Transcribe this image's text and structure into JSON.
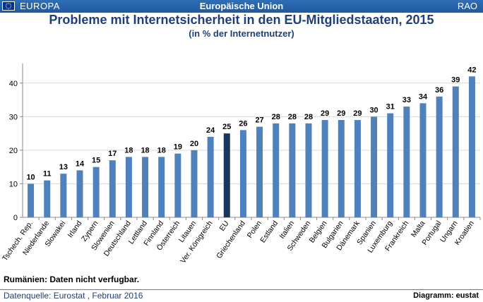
{
  "header": {
    "left_label": "EUROPA",
    "center_label": "Europäische Union",
    "right_label": "RAO"
  },
  "colors": {
    "bar": "#4f81bd",
    "highlight_bar": "#17375e",
    "header_bg": "#2a68b0"
  },
  "icons": {
    "flag": "eu-flag-icon"
  },
  "chart_data": {
    "type": "bar",
    "title": "Probleme mit Internetsicherheit in den EU-Mitgliedstaaten, 2015",
    "subtitle": "(in % der Internetnutzer)",
    "categories": [
      "Tschech. Rep.",
      "Niederlande",
      "Slowakei",
      "Irland",
      "Zypern",
      "Slowenien",
      "Deutschland",
      "Lettland",
      "Finnland",
      "Österreich",
      "Litauen",
      "Ver. Königreich",
      "EU",
      "Griechenland",
      "Polen",
      "Estland",
      "Italien",
      "Schweden",
      "Belgien",
      "Bulgarien",
      "Dänemark",
      "Spanien",
      "Luxemburg",
      "Frankreich",
      "Malta",
      "Portugal",
      "Ungarn",
      "Kroatien"
    ],
    "values": [
      10,
      11,
      13,
      14,
      15,
      17,
      18,
      18,
      18,
      19,
      20,
      24,
      25,
      26,
      27,
      28,
      28,
      28,
      29,
      29,
      29,
      30,
      31,
      33,
      34,
      36,
      39,
      42
    ],
    "highlight_category": "EU",
    "yticks": [
      0,
      10,
      20,
      30,
      40
    ],
    "ylim": [
      0,
      45
    ],
    "grid": true,
    "legend": "none"
  },
  "note": "Rumänien: Daten nicht verfugbar.",
  "footer": {
    "source": "Datenquelle:  Eurostat , Februar 2016",
    "credit": "Diagramm: eustat"
  }
}
